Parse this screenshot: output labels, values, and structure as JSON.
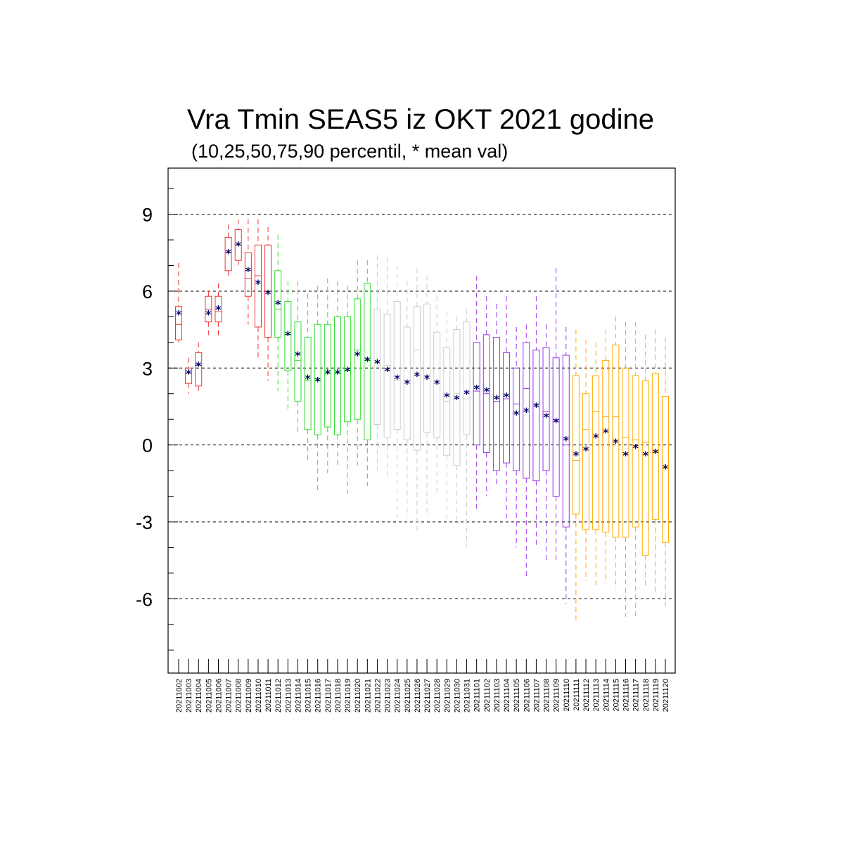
{
  "chart_data": {
    "type": "boxplot",
    "title": "Vra Tmin SEAS5 iz OKT 2021 godine",
    "subtitle": "(10,25,50,75,90 percentil, * mean val)",
    "xlabel": "",
    "ylabel": "",
    "ylim": [
      -8.9,
      10.8
    ],
    "yticks": [
      -6,
      -3,
      0,
      3,
      6,
      9
    ],
    "ytick_labels": [
      "-6",
      "-3",
      "0",
      "3",
      "6",
      "9"
    ],
    "gridlines_at": [
      -6,
      -3,
      0,
      3,
      6,
      9
    ],
    "grid": "dashed horizontal",
    "legend": "none",
    "mean_marker": "*",
    "mean_color": "#000066",
    "group_colors": [
      "#ee3333",
      "#33dd33",
      "#cccccc",
      "#9933ee",
      "#ffaa00"
    ],
    "categories": [
      "20211002",
      "20211003",
      "20211004",
      "20211005",
      "20211006",
      "20211007",
      "20211008",
      "20211009",
      "20211010",
      "20211011",
      "20211012",
      "20211013",
      "20211014",
      "20211015",
      "20211016",
      "20211017",
      "20211018",
      "20211019",
      "20211020",
      "20211021",
      "20211022",
      "20211023",
      "20211024",
      "20211025",
      "20211026",
      "20211027",
      "20211028",
      "20211029",
      "20211030",
      "20211031",
      "20211101",
      "20211102",
      "20211103",
      "20211104",
      "20211105",
      "20211106",
      "20211107",
      "20211108",
      "20211109",
      "20211110",
      "20211111",
      "20211112",
      "20211113",
      "20211114",
      "20211115",
      "20211116",
      "20211117",
      "20211118",
      "20211119",
      "20211120"
    ],
    "color_group": [
      0,
      0,
      0,
      0,
      0,
      0,
      0,
      0,
      0,
      0,
      1,
      1,
      1,
      1,
      1,
      1,
      1,
      1,
      1,
      1,
      2,
      2,
      2,
      2,
      2,
      2,
      2,
      2,
      2,
      2,
      3,
      3,
      3,
      3,
      3,
      3,
      3,
      3,
      3,
      3,
      4,
      4,
      4,
      4,
      4,
      4,
      4,
      4,
      4,
      4
    ],
    "p10": [
      4.0,
      2.0,
      2.1,
      4.2,
      4.2,
      6.6,
      7.0,
      4.7,
      3.4,
      2.5,
      2.1,
      1.3,
      0.4,
      -0.6,
      -1.9,
      -1.1,
      -0.8,
      -1.9,
      -0.8,
      -1.6,
      -1.0,
      -1.2,
      -3.0,
      -2.8,
      -3.5,
      -2.7,
      -2.0,
      -3.0,
      -3.0,
      -4.0,
      -2.5,
      -2.0,
      -1.6,
      -3.0,
      -4.0,
      -5.2,
      -4.0,
      -4.5,
      -4.6,
      -6.2,
      -7.0,
      -5.3,
      -5.5,
      -5.4,
      -5.6,
      -6.7,
      -6.7,
      -5.5,
      -5.8,
      -6.4
    ],
    "p25": [
      4.1,
      2.4,
      2.3,
      4.8,
      4.8,
      6.8,
      7.2,
      5.8,
      4.6,
      4.2,
      4.2,
      2.9,
      1.7,
      0.6,
      0.4,
      0.7,
      0.4,
      0.9,
      1.0,
      0.2,
      0.8,
      0.3,
      0.6,
      0.2,
      -0.2,
      0.5,
      0.3,
      -0.4,
      -0.8,
      0.4,
      0.0,
      -0.3,
      -1.0,
      -0.7,
      -1.0,
      -1.3,
      -1.4,
      -1.0,
      -2.0,
      -3.2,
      -2.7,
      -3.3,
      -3.3,
      -3.4,
      -3.6,
      -3.6,
      -3.2,
      -4.3,
      -2.9,
      -3.8
    ],
    "p50": [
      4.7,
      2.8,
      3.1,
      5.3,
      5.2,
      7.5,
      7.8,
      6.5,
      6.6,
      6.0,
      5.3,
      4.3,
      3.3,
      2.5,
      2.5,
      2.8,
      2.8,
      2.9,
      3.7,
      3.3,
      3.2,
      3.1,
      2.5,
      2.5,
      3.7,
      2.7,
      2.4,
      1.7,
      2.0,
      1.8,
      2.1,
      2.0,
      1.7,
      1.8,
      1.6,
      2.2,
      1.6,
      1.3,
      1.0,
      0.0,
      -0.6,
      0.6,
      1.3,
      1.1,
      1.1,
      0.3,
      0.2,
      0.1,
      -0.3,
      -0.9
    ],
    "p75": [
      5.4,
      3.0,
      3.6,
      5.8,
      5.8,
      8.1,
      8.4,
      7.5,
      7.8,
      7.8,
      6.8,
      5.6,
      4.8,
      4.2,
      4.7,
      4.7,
      5.0,
      5.0,
      5.7,
      6.3,
      5.3,
      5.1,
      5.6,
      4.6,
      5.4,
      5.5,
      4.4,
      3.8,
      4.5,
      4.8,
      4.0,
      4.3,
      4.2,
      3.6,
      3.0,
      4.0,
      3.7,
      3.8,
      3.4,
      3.5,
      2.7,
      2.0,
      2.7,
      3.3,
      3.9,
      3.0,
      2.7,
      2.5,
      2.8,
      1.9
    ],
    "p90": [
      7.1,
      3.4,
      4.0,
      6.0,
      6.3,
      8.6,
      8.8,
      8.8,
      8.8,
      8.5,
      8.2,
      6.4,
      6.4,
      5.9,
      6.2,
      6.5,
      6.4,
      6.2,
      7.2,
      7.2,
      7.4,
      7.3,
      7.0,
      6.4,
      6.9,
      6.6,
      5.8,
      5.2,
      5.0,
      5.3,
      6.6,
      5.8,
      5.5,
      5.8,
      4.6,
      4.7,
      5.8,
      4.7,
      6.9,
      4.6,
      4.5,
      4.1,
      4.0,
      4.5,
      5.0,
      4.8,
      4.8,
      4.3,
      4.5,
      4.2
    ],
    "mean": [
      5.1,
      2.8,
      3.1,
      5.1,
      5.3,
      7.5,
      7.8,
      6.8,
      6.3,
      5.9,
      5.5,
      4.3,
      3.5,
      2.6,
      2.5,
      2.8,
      2.8,
      2.9,
      3.5,
      3.3,
      3.2,
      2.9,
      2.6,
      2.4,
      2.7,
      2.6,
      2.4,
      1.9,
      1.8,
      2.0,
      2.2,
      2.1,
      1.8,
      1.9,
      1.2,
      1.3,
      1.5,
      1.1,
      0.9,
      0.2,
      -0.4,
      -0.2,
      0.3,
      0.5,
      0.1,
      -0.4,
      -0.1,
      -0.4,
      -0.3,
      -0.9
    ]
  }
}
